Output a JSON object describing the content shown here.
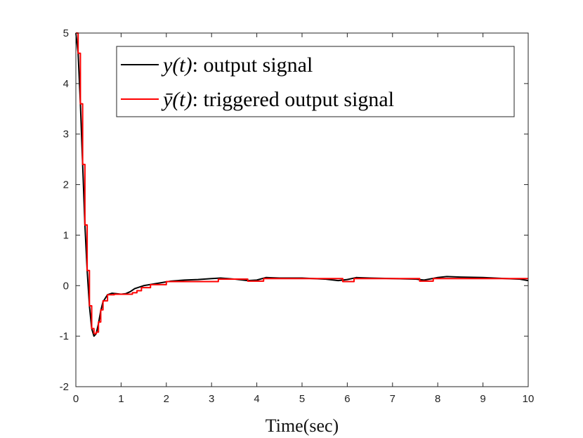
{
  "chart_data": {
    "type": "line",
    "title": "",
    "xlabel": "Time(sec)",
    "ylabel": "",
    "xlim": [
      0,
      10
    ],
    "ylim": [
      -2,
      5
    ],
    "xticks": [
      0,
      1,
      2,
      3,
      4,
      5,
      6,
      7,
      8,
      9,
      10
    ],
    "yticks": [
      -2,
      -1,
      0,
      1,
      2,
      3,
      4,
      5
    ],
    "grid": false,
    "legend_position": "top-right",
    "series": [
      {
        "name": "y(t): output signal",
        "legend_math": "y(t)",
        "legend_rest": ": output signal",
        "color": "#000000",
        "step": false,
        "x": [
          0,
          0.05,
          0.1,
          0.15,
          0.2,
          0.25,
          0.3,
          0.35,
          0.4,
          0.45,
          0.5,
          0.55,
          0.6,
          0.7,
          0.8,
          0.9,
          1.0,
          1.1,
          1.2,
          1.3,
          1.5,
          1.7,
          1.9,
          2.1,
          2.4,
          2.7,
          3.0,
          3.2,
          3.5,
          3.8,
          4.0,
          4.2,
          4.5,
          5.0,
          5.5,
          5.8,
          6.0,
          6.2,
          6.5,
          7.0,
          7.5,
          7.7,
          8.0,
          8.2,
          8.5,
          9.0,
          9.5,
          9.8,
          10.0
        ],
        "y": [
          5.0,
          4.6,
          3.6,
          2.4,
          1.2,
          0.3,
          -0.4,
          -0.85,
          -1.0,
          -0.95,
          -0.75,
          -0.5,
          -0.32,
          -0.18,
          -0.15,
          -0.16,
          -0.17,
          -0.16,
          -0.12,
          -0.06,
          0.0,
          0.03,
          0.06,
          0.09,
          0.11,
          0.12,
          0.14,
          0.15,
          0.13,
          0.1,
          0.11,
          0.16,
          0.15,
          0.15,
          0.13,
          0.1,
          0.12,
          0.16,
          0.15,
          0.14,
          0.13,
          0.11,
          0.16,
          0.18,
          0.17,
          0.16,
          0.14,
          0.13,
          0.1
        ]
      },
      {
        "name": "ȳ(t): triggered output signal",
        "legend_math": "ȳ(t)",
        "legend_rest": ": triggered output signal",
        "color": "#ff0000",
        "step": true,
        "x": [
          0,
          0.05,
          0.1,
          0.15,
          0.2,
          0.25,
          0.3,
          0.35,
          0.4,
          0.45,
          0.5,
          0.55,
          0.6,
          0.7,
          0.85,
          1.25,
          1.35,
          1.45,
          1.65,
          2.0,
          3.15,
          3.8,
          4.15,
          5.9,
          6.15,
          7.6,
          7.9,
          10.0
        ],
        "y": [
          5.0,
          4.6,
          3.6,
          2.4,
          1.2,
          0.3,
          -0.4,
          -0.85,
          -0.95,
          -0.92,
          -0.72,
          -0.48,
          -0.3,
          -0.18,
          -0.17,
          -0.14,
          -0.1,
          -0.04,
          0.02,
          0.08,
          0.13,
          0.09,
          0.14,
          0.08,
          0.14,
          0.09,
          0.14,
          0.14
        ]
      }
    ]
  }
}
